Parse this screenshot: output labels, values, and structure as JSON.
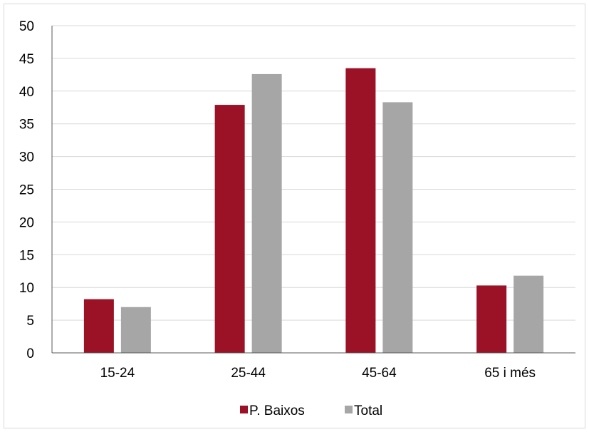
{
  "chart_data": {
    "type": "bar",
    "categories": [
      "15-24",
      "25-44",
      "45-64",
      "65 i més"
    ],
    "series": [
      {
        "name": "P. Baixos",
        "color": "#9b1126",
        "values": [
          8.2,
          37.9,
          43.5,
          10.3
        ]
      },
      {
        "name": "Total",
        "color": "#a6a6a6",
        "values": [
          7.0,
          42.6,
          38.3,
          11.8
        ]
      }
    ],
    "title": "",
    "xlabel": "",
    "ylabel": "",
    "ylim": [
      0,
      50
    ],
    "yticks": [
      0,
      5,
      10,
      15,
      20,
      25,
      30,
      35,
      40,
      45,
      50
    ],
    "grid": true,
    "legend_position": "bottom"
  }
}
